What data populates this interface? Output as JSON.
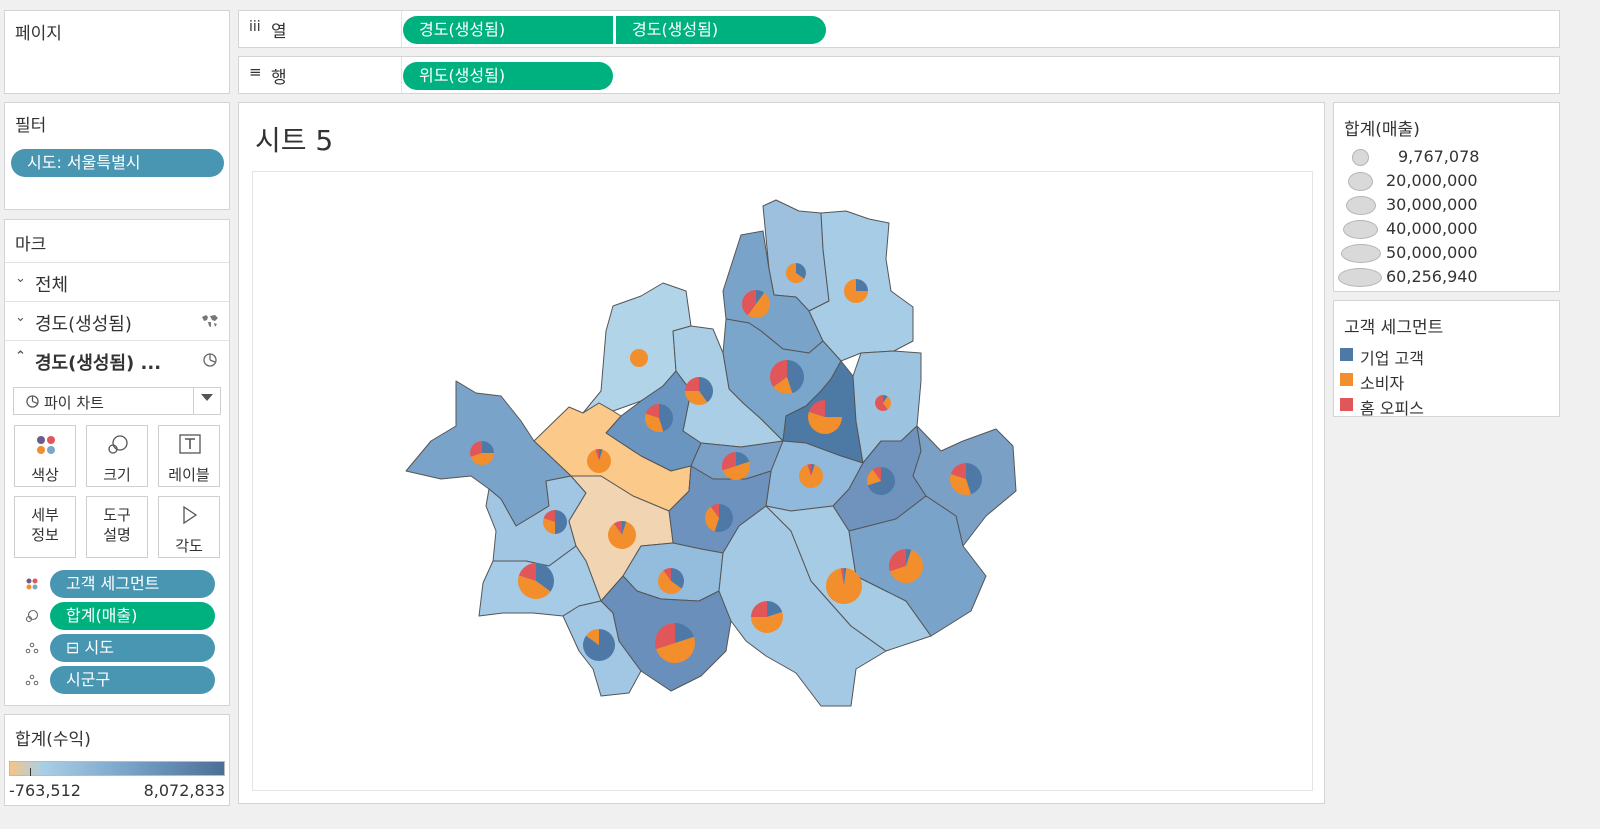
{
  "pages_panel": {
    "title": "페이지"
  },
  "shelves": {
    "columns": {
      "icon": "iii",
      "label": "열",
      "pills": [
        "경도(생성됨)",
        "경도(생성됨)"
      ]
    },
    "rows": {
      "icon": "≡",
      "label": "행",
      "pills": [
        "위도(생성됨)"
      ]
    }
  },
  "filters": {
    "title": "필터",
    "pill": "시도: 서울특별시"
  },
  "marks": {
    "title": "마크",
    "rows": [
      "전체",
      "경도(생성됨)",
      "경도(생성됨) ..."
    ],
    "mark_type": "파이 차트",
    "buttons": {
      "color": "색상",
      "size": "크기",
      "label": "레이블",
      "detail": "세부\n정보",
      "tooltip": "도구\n설명",
      "angle": "각도"
    },
    "fields": [
      "고객 세그먼트",
      "합계(매출)",
      "⊟ 시도",
      "시군구"
    ]
  },
  "profit_legend": {
    "title": "합계(수익)",
    "min": "-763,512",
    "max": "8,072,833"
  },
  "sheet": {
    "title": "시트 5"
  },
  "size_legend": {
    "title": "합계(매출)",
    "items": [
      "9,767,078",
      "20,000,000",
      "30,000,000",
      "40,000,000",
      "50,000,000",
      "60,256,940"
    ]
  },
  "color_legend": {
    "title": "고객 세그먼트",
    "items": [
      {
        "label": "기업 고객",
        "color": "#4e79a7"
      },
      {
        "label": "소비자",
        "color": "#f28e2b"
      },
      {
        "label": "홈 오피스",
        "color": "#e15759"
      }
    ]
  },
  "colors": {
    "green": "#00b180",
    "blue": "#4996b2"
  }
}
